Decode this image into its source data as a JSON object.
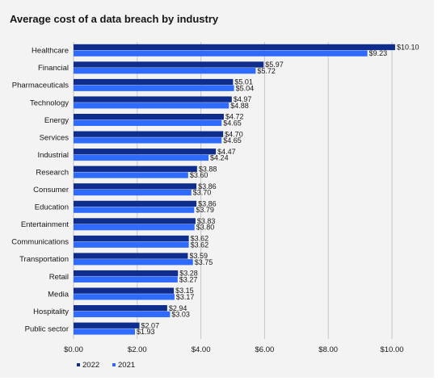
{
  "chart_data": {
    "type": "bar",
    "orientation": "horizontal",
    "title": "Average cost of a data breach by industry",
    "categories": [
      "Healthcare",
      "Financial",
      "Pharmaceuticals",
      "Technology",
      "Energy",
      "Services",
      "Industrial",
      "Research",
      "Consumer",
      "Education",
      "Entertainment",
      "Communications",
      "Transportation",
      "Retail",
      "Media",
      "Hospitality",
      "Public sector"
    ],
    "series": [
      {
        "name": "2022",
        "color": "#0f2d8c",
        "values": [
          10.1,
          5.97,
          5.01,
          4.97,
          4.72,
          4.7,
          4.47,
          3.88,
          3.86,
          3.86,
          3.83,
          3.62,
          3.59,
          3.28,
          3.15,
          2.94,
          2.07
        ],
        "labels": [
          "$10.10",
          "$5.97",
          "$5.01",
          "$4.97",
          "$4.72",
          "$4.70",
          "$4.47",
          "$3.88",
          "$3.86",
          "$3.86",
          "$3.83",
          "$3.62",
          "$3.59",
          "$3.28",
          "$3.15",
          "$2.94",
          "$2.07"
        ]
      },
      {
        "name": "2021",
        "color": "#2f6bff",
        "values": [
          9.23,
          5.72,
          5.04,
          4.88,
          4.65,
          4.65,
          4.24,
          3.6,
          3.7,
          3.79,
          3.8,
          3.62,
          3.75,
          3.27,
          3.17,
          3.03,
          1.93
        ],
        "labels": [
          "$9.23",
          "$5.72",
          "$5.04",
          "$4.88",
          "$4.65",
          "$4.65",
          "$4.24",
          "$3.60",
          "$3.70",
          "$3.79",
          "$3.80",
          "$3.62",
          "$3.75",
          "$3.27",
          "$3.17",
          "$3.03",
          "$1.93"
        ]
      }
    ],
    "xlim": [
      0,
      10
    ],
    "x_ticks": [
      0,
      2,
      4,
      6,
      8,
      10
    ],
    "x_tick_labels": [
      "$0.00",
      "$2.00",
      "$4.00",
      "$6.00",
      "$8.00",
      "$10.00"
    ],
    "grid": true,
    "legend_position": "bottom-left",
    "legend": [
      "2022",
      "2021"
    ]
  }
}
